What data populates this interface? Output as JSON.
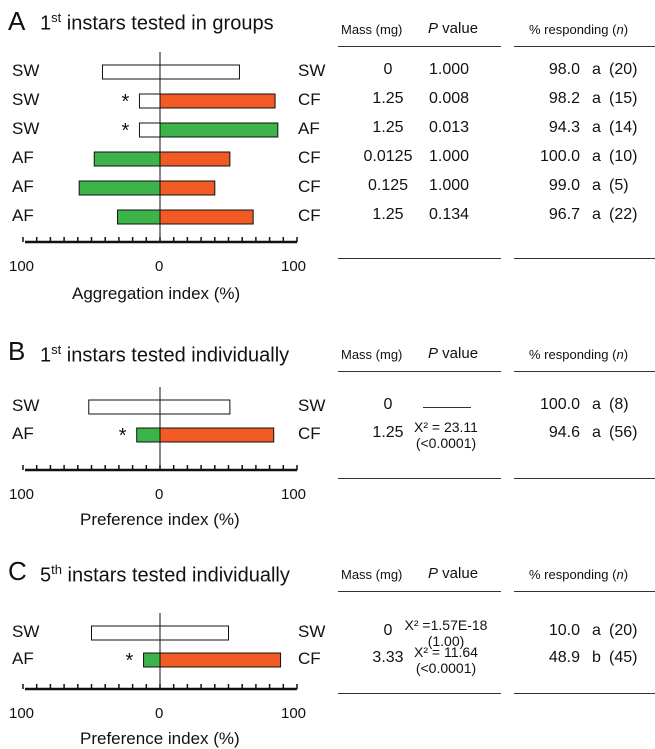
{
  "colors": {
    "SW": "#ffffff",
    "CF": "#f15a22",
    "AF": "#3cb44a",
    "stroke": "#111111"
  },
  "chart_data": [
    {
      "type": "bar",
      "letter": "A",
      "title": {
        "prefix": "1",
        "sup": "st",
        "rest": " instars tested in groups"
      },
      "headers": {
        "mass": "Mass (mg)",
        "p": "P",
        "pword": " value",
        "resp": "% responding",
        "n": "n"
      },
      "xlabel": "Aggregation index (%)",
      "xticks": [
        "100",
        "0",
        "100"
      ],
      "xlim": [
        -100,
        100
      ],
      "rows": [
        {
          "left_label": "SW",
          "right_label": "SW",
          "left": -42,
          "right": 58,
          "left_color": "SW",
          "right_color": "SW",
          "star": "",
          "mass": "0",
          "p": "1.000",
          "resp": "98.0",
          "letter": "a",
          "n": "(20)"
        },
        {
          "left_label": "SW",
          "right_label": "CF",
          "left": -15,
          "right": 84,
          "left_color": "SW",
          "right_color": "CF",
          "star": "*",
          "mass": "1.25",
          "p": "0.008",
          "resp": "98.2",
          "letter": "a",
          "n": "(15)"
        },
        {
          "left_label": "SW",
          "right_label": "AF",
          "left": -15,
          "right": 86,
          "left_color": "SW",
          "right_color": "AF",
          "star": "*",
          "mass": "1.25",
          "p": "0.013",
          "resp": "94.3",
          "letter": "a",
          "n": "(14)"
        },
        {
          "left_label": "AF",
          "right_label": "CF",
          "left": -48,
          "right": 51,
          "left_color": "AF",
          "right_color": "CF",
          "star": "",
          "mass": "0.0125",
          "p": "1.000",
          "resp": "100.0",
          "letter": "a",
          "n": "(10)"
        },
        {
          "left_label": "AF",
          "right_label": "CF",
          "left": -59,
          "right": 40,
          "left_color": "AF",
          "right_color": "CF",
          "star": "",
          "mass": "0.125",
          "p": "1.000",
          "resp": "99.0",
          "letter": "a",
          "n": "(5)"
        },
        {
          "left_label": "AF",
          "right_label": "CF",
          "left": -31,
          "right": 68,
          "left_color": "AF",
          "right_color": "CF",
          "star": "",
          "mass": "1.25",
          "p": "0.134",
          "resp": "96.7",
          "letter": "a",
          "n": "(22)"
        }
      ]
    },
    {
      "type": "bar",
      "letter": "B",
      "title": {
        "prefix": "1",
        "sup": "st",
        "rest": " instars tested individually"
      },
      "headers": {
        "mass": "Mass (mg)",
        "p": "P",
        "pword": " value",
        "resp": "% responding",
        "n": "n"
      },
      "xlabel": "Preference index (%)",
      "xticks": [
        "100",
        "0",
        "100"
      ],
      "xlim": [
        -100,
        100
      ],
      "rows": [
        {
          "left_label": "SW",
          "right_label": "SW",
          "left": -52,
          "right": 51,
          "left_color": "SW",
          "right_color": "SW",
          "star": "",
          "mass": "0",
          "p": "",
          "p2": "",
          "dash": true,
          "resp": "100.0",
          "letter": "a",
          "n": "(8)"
        },
        {
          "left_label": "AF",
          "right_label": "CF",
          "left": -17,
          "right": 83,
          "left_color": "AF",
          "right_color": "CF",
          "star": "*",
          "mass": "1.25",
          "p": "X² = 23.11",
          "p2": "(<0.0001)",
          "resp": "94.6",
          "letter": "a",
          "n": "(56)"
        }
      ]
    },
    {
      "type": "bar",
      "letter": "C",
      "title": {
        "prefix": "5",
        "sup": "th",
        "rest": " instars tested individually"
      },
      "headers": {
        "mass": "Mass (mg)",
        "p": "P",
        "pword": " value",
        "resp": "% responding",
        "n": "n"
      },
      "xlabel": "Preference index (%)",
      "xticks": [
        "100",
        "0",
        "100"
      ],
      "xlim": [
        -100,
        100
      ],
      "rows": [
        {
          "left_label": "SW",
          "right_label": "SW",
          "left": -50,
          "right": 50,
          "left_color": "SW",
          "right_color": "SW",
          "star": "",
          "mass": "0",
          "p": "X² =1.57E-18",
          "p2": "(1.00)",
          "resp": "10.0",
          "letter": "a",
          "n": "(20)"
        },
        {
          "left_label": "AF",
          "right_label": "CF",
          "left": -12,
          "right": 88,
          "left_color": "AF",
          "right_color": "CF",
          "star": "*",
          "mass": "3.33",
          "p": "X² = 11.64",
          "p2": "(<0.0001)",
          "resp": "48.9",
          "letter": "b",
          "n": "(45)"
        }
      ]
    }
  ]
}
